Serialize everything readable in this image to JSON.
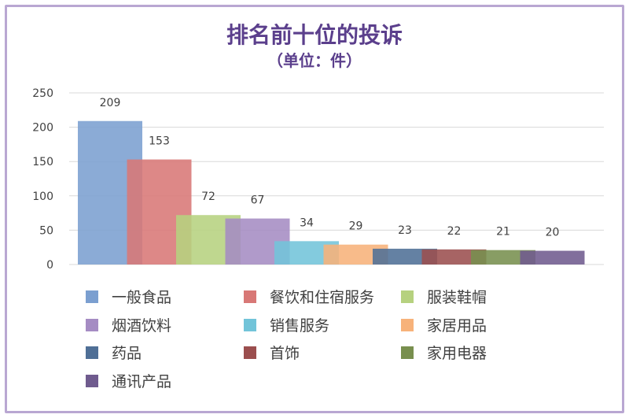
{
  "chart_data": {
    "type": "bar",
    "title": "排名前十位的投诉",
    "subtitle": "（单位：件）",
    "xlabel": "",
    "ylabel": "",
    "ylim": [
      0,
      250
    ],
    "yticks": [
      0,
      50,
      100,
      150,
      200,
      250
    ],
    "grid": true,
    "legend_position": "bottom",
    "series": [
      {
        "name": "一般食品",
        "value": 209,
        "color": "#7b9fd0"
      },
      {
        "name": "餐饮和住宿服务",
        "value": 153,
        "color": "#d87876"
      },
      {
        "name": "服装鞋帽",
        "value": 72,
        "color": "#b6d17f"
      },
      {
        "name": "烟酒饮料",
        "value": 67,
        "color": "#a58cc3"
      },
      {
        "name": "销售服务",
        "value": 34,
        "color": "#72c4d9"
      },
      {
        "name": "家居用品",
        "value": 29,
        "color": "#f7b27a"
      },
      {
        "name": "药品",
        "value": 23,
        "color": "#4f6f96"
      },
      {
        "name": "首饰",
        "value": 22,
        "color": "#9b4e4e"
      },
      {
        "name": "家用电器",
        "value": 21,
        "color": "#788f4e"
      },
      {
        "name": "通讯产品",
        "value": 20,
        "color": "#6f5b8e"
      }
    ]
  }
}
